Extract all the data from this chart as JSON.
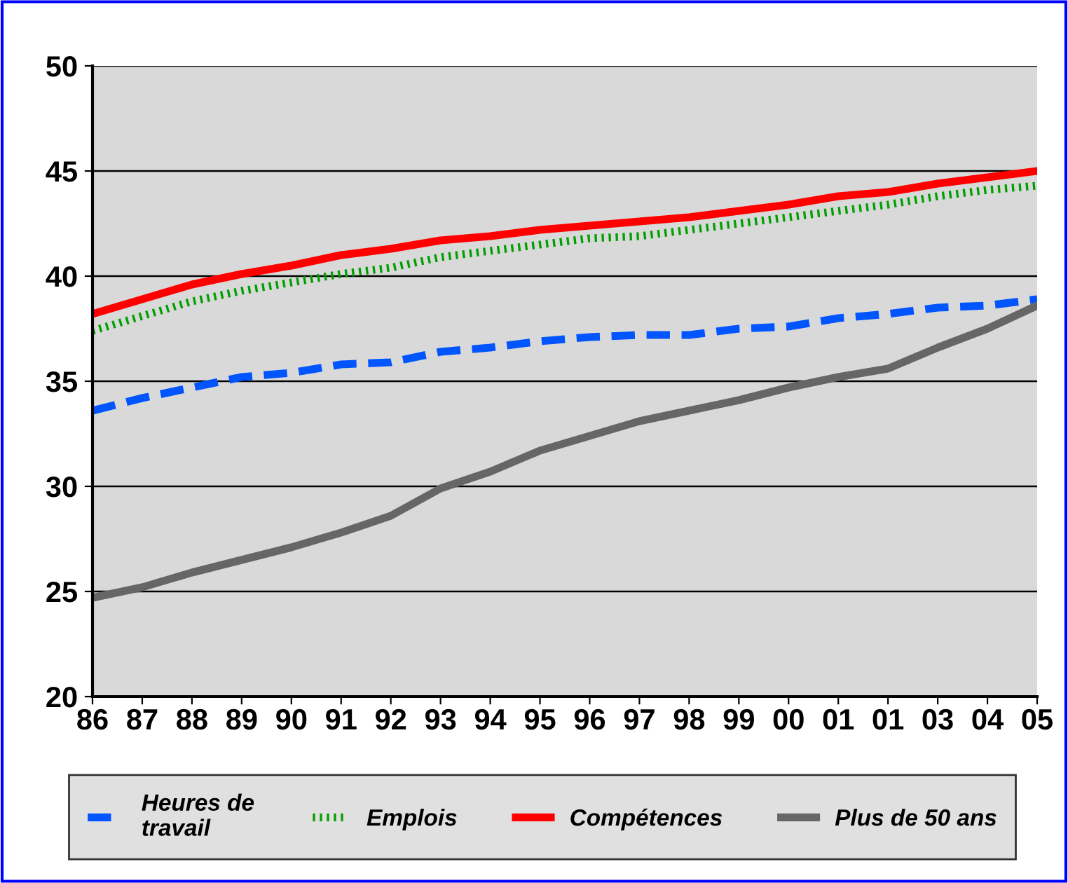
{
  "chart_data": {
    "type": "line",
    "categories": [
      "86",
      "87",
      "88",
      "89",
      "90",
      "91",
      "92",
      "93",
      "94",
      "95",
      "96",
      "97",
      "98",
      "99",
      "00",
      "01",
      "01",
      "03",
      "04",
      "05"
    ],
    "ylim": [
      20,
      50
    ],
    "yticks": [
      20,
      25,
      30,
      35,
      40,
      45,
      50
    ],
    "grid": "y",
    "legend": "bottom",
    "series": [
      {
        "name": "Heures de\ntravail",
        "color": "#0055ff",
        "line_style": "dashed",
        "values": [
          33.6,
          34.2,
          34.7,
          35.2,
          35.4,
          35.8,
          35.9,
          36.4,
          36.6,
          36.9,
          37.1,
          37.2,
          37.2,
          37.5,
          37.6,
          38.0,
          38.2,
          38.5,
          38.6,
          38.9
        ]
      },
      {
        "name": "Emplois",
        "color": "#00a000",
        "line_style": "dotted",
        "values": [
          37.4,
          38.1,
          38.8,
          39.3,
          39.7,
          40.1,
          40.4,
          40.9,
          41.2,
          41.5,
          41.8,
          41.9,
          42.2,
          42.5,
          42.8,
          43.1,
          43.4,
          43.8,
          44.1,
          44.3
        ]
      },
      {
        "name": "Compétences",
        "color": "#ff0000",
        "line_style": "solid",
        "values": [
          38.2,
          38.9,
          39.6,
          40.1,
          40.5,
          41.0,
          41.3,
          41.7,
          41.9,
          42.2,
          42.4,
          42.6,
          42.8,
          43.1,
          43.4,
          43.8,
          44.0,
          44.4,
          44.7,
          45.0
        ]
      },
      {
        "name": "Plus de 50 ans",
        "color": "#666666",
        "line_style": "solid",
        "values": [
          24.7,
          25.2,
          25.9,
          26.5,
          27.1,
          27.8,
          28.6,
          29.9,
          30.7,
          31.7,
          32.4,
          33.1,
          33.6,
          34.1,
          34.7,
          35.2,
          35.6,
          36.6,
          37.5,
          38.6
        ]
      }
    ]
  }
}
